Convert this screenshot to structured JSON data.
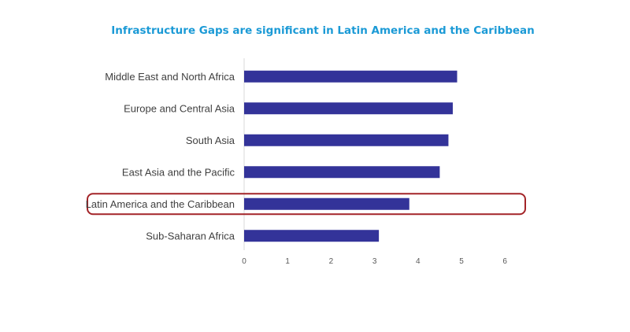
{
  "chart_data": {
    "type": "bar",
    "orientation": "horizontal",
    "title": "Infrastructure Gaps are significant in Latin America and the Caribbean",
    "categories": [
      "Middle East and North Africa",
      "Europe and Central Asia",
      "South Asia",
      "East Asia and the Pacific",
      "Latin America and the Caribbean",
      "Sub-Saharan Africa"
    ],
    "values": [
      4.9,
      4.8,
      4.7,
      4.5,
      3.8,
      3.1
    ],
    "xlim": [
      0,
      6
    ],
    "xticks": [
      "0",
      "1",
      "2",
      "3",
      "4",
      "5",
      "6"
    ],
    "xlabel": "",
    "ylabel": "",
    "grid": false,
    "highlighted_category": "Latin America and the Caribbean"
  },
  "colors": {
    "title": "#1b9ad6",
    "bar": "#333399",
    "axis": "#d9d9d9",
    "highlight_border": "#a32428"
  }
}
